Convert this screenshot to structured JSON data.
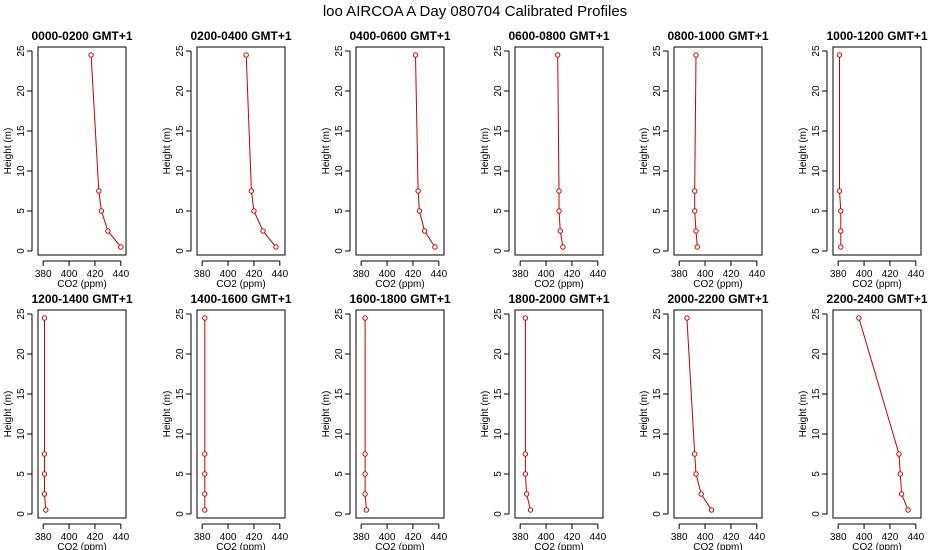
{
  "figure": {
    "title": "loo AIRCOA A  Day 080704  Calibrated Profiles"
  },
  "line_color": "#cc0000",
  "axis_color": "#000000",
  "chart_data": [
    {
      "type": "line",
      "title": "0000-0200 GMT+1",
      "xlabel": "CO2 (ppm)",
      "ylabel": "Height (m)",
      "xlim": [
        376,
        444
      ],
      "ylim": [
        -0.5,
        25.5
      ],
      "xticks": [
        380,
        400,
        420,
        440
      ],
      "yticks": [
        0,
        5,
        10,
        15,
        20,
        25
      ],
      "x": [
        417,
        423,
        425,
        430,
        440
      ],
      "y": [
        24.5,
        7.5,
        5,
        2.5,
        0.5
      ]
    },
    {
      "type": "line",
      "title": "0200-0400 GMT+1",
      "xlabel": "CO2 (ppm)",
      "ylabel": "Height (m)",
      "xlim": [
        376,
        444
      ],
      "ylim": [
        -0.5,
        25.5
      ],
      "xticks": [
        380,
        400,
        420,
        440
      ],
      "yticks": [
        0,
        5,
        10,
        15,
        20,
        25
      ],
      "x": [
        414,
        418,
        420,
        427,
        437
      ],
      "y": [
        24.5,
        7.5,
        5,
        2.5,
        0.5
      ]
    },
    {
      "type": "line",
      "title": "0400-0600 GMT+1",
      "xlabel": "CO2 (ppm)",
      "ylabel": "Height (m)",
      "xlim": [
        376,
        444
      ],
      "ylim": [
        -0.5,
        25.5
      ],
      "xticks": [
        380,
        400,
        420,
        440
      ],
      "yticks": [
        0,
        5,
        10,
        15,
        20,
        25
      ],
      "x": [
        422,
        424,
        425,
        429,
        437
      ],
      "y": [
        24.5,
        7.5,
        5,
        2.5,
        0.5
      ]
    },
    {
      "type": "line",
      "title": "0600-0800 GMT+1",
      "xlabel": "CO2 (ppm)",
      "ylabel": "Height (m)",
      "xlim": [
        376,
        444
      ],
      "ylim": [
        -0.5,
        25.5
      ],
      "xticks": [
        380,
        400,
        420,
        440
      ],
      "yticks": [
        0,
        5,
        10,
        15,
        20,
        25
      ],
      "x": [
        409,
        410,
        410,
        411,
        413
      ],
      "y": [
        24.5,
        7.5,
        5,
        2.5,
        0.5
      ]
    },
    {
      "type": "line",
      "title": "0800-1000 GMT+1",
      "xlabel": "CO2 (ppm)",
      "ylabel": "Height (m)",
      "xlim": [
        376,
        444
      ],
      "ylim": [
        -0.5,
        25.5
      ],
      "xticks": [
        380,
        400,
        420,
        440
      ],
      "yticks": [
        0,
        5,
        10,
        15,
        20,
        25
      ],
      "x": [
        393,
        392,
        392,
        393,
        394
      ],
      "y": [
        24.5,
        7.5,
        5,
        2.5,
        0.5
      ]
    },
    {
      "type": "line",
      "title": "1000-1200 GMT+1",
      "xlabel": "CO2 (ppm)",
      "ylabel": "Height (m)",
      "xlim": [
        376,
        444
      ],
      "ylim": [
        -0.5,
        25.5
      ],
      "xticks": [
        380,
        400,
        420,
        440
      ],
      "yticks": [
        0,
        5,
        10,
        15,
        20,
        25
      ],
      "x": [
        381,
        381,
        382,
        382,
        382
      ],
      "y": [
        24.5,
        7.5,
        5,
        2.5,
        0.5
      ]
    },
    {
      "type": "line",
      "title": "1200-1400 GMT+1",
      "xlabel": "CO2 (ppm)",
      "ylabel": "Height (m)",
      "xlim": [
        376,
        444
      ],
      "ylim": [
        -0.5,
        25.5
      ],
      "xticks": [
        380,
        400,
        420,
        440
      ],
      "yticks": [
        0,
        5,
        10,
        15,
        20,
        25
      ],
      "x": [
        381,
        381,
        381,
        381,
        382
      ],
      "y": [
        24.5,
        7.5,
        5,
        2.5,
        0.5
      ]
    },
    {
      "type": "line",
      "title": "1400-1600 GMT+1",
      "xlabel": "CO2 (ppm)",
      "ylabel": "Height (m)",
      "xlim": [
        376,
        444
      ],
      "ylim": [
        -0.5,
        25.5
      ],
      "xticks": [
        380,
        400,
        420,
        440
      ],
      "yticks": [
        0,
        5,
        10,
        15,
        20,
        25
      ],
      "x": [
        382,
        382,
        382,
        382,
        382
      ],
      "y": [
        24.5,
        7.5,
        5,
        2.5,
        0.5
      ]
    },
    {
      "type": "line",
      "title": "1600-1800 GMT+1",
      "xlabel": "CO2 (ppm)",
      "ylabel": "Height (m)",
      "xlim": [
        376,
        444
      ],
      "ylim": [
        -0.5,
        25.5
      ],
      "xticks": [
        380,
        400,
        420,
        440
      ],
      "yticks": [
        0,
        5,
        10,
        15,
        20,
        25
      ],
      "x": [
        383,
        383,
        383,
        383,
        384
      ],
      "y": [
        24.5,
        7.5,
        5,
        2.5,
        0.5
      ]
    },
    {
      "type": "line",
      "title": "1800-2000 GMT+1",
      "xlabel": "CO2 (ppm)",
      "ylabel": "Height (m)",
      "xlim": [
        376,
        444
      ],
      "ylim": [
        -0.5,
        25.5
      ],
      "xticks": [
        380,
        400,
        420,
        440
      ],
      "yticks": [
        0,
        5,
        10,
        15,
        20,
        25
      ],
      "x": [
        384,
        384,
        384,
        385,
        388
      ],
      "y": [
        24.5,
        7.5,
        5,
        2.5,
        0.5
      ]
    },
    {
      "type": "line",
      "title": "2000-2200 GMT+1",
      "xlabel": "CO2 (ppm)",
      "ylabel": "Height (m)",
      "xlim": [
        376,
        444
      ],
      "ylim": [
        -0.5,
        25.5
      ],
      "xticks": [
        380,
        400,
        420,
        440
      ],
      "yticks": [
        0,
        5,
        10,
        15,
        20,
        25
      ],
      "x": [
        386,
        392,
        393,
        397,
        405
      ],
      "y": [
        24.5,
        7.5,
        5,
        2.5,
        0.5
      ]
    },
    {
      "type": "line",
      "title": "2200-2400 GMT+1",
      "xlabel": "CO2 (ppm)",
      "ylabel": "Height (m)",
      "xlim": [
        376,
        444
      ],
      "ylim": [
        -0.5,
        25.5
      ],
      "xticks": [
        380,
        400,
        420,
        440
      ],
      "yticks": [
        0,
        5,
        10,
        15,
        20,
        25
      ],
      "x": [
        396,
        427,
        428,
        429,
        434
      ],
      "y": [
        24.5,
        7.5,
        5,
        2.5,
        0.5
      ]
    }
  ]
}
